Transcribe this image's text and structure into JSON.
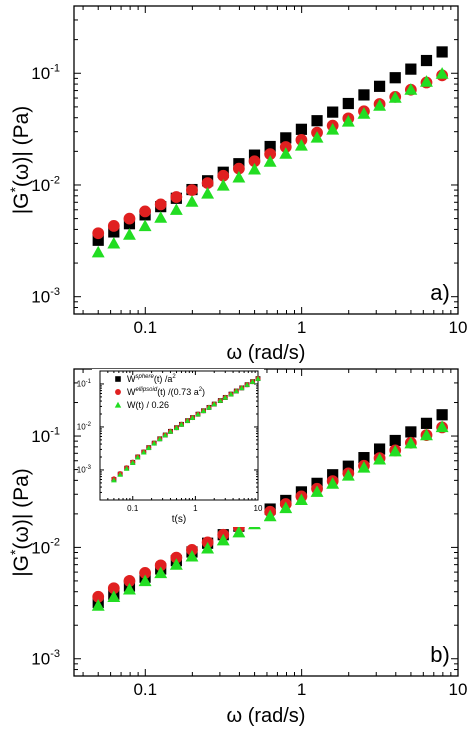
{
  "chart_data": [
    {
      "type": "scatter",
      "panel_label": "a)",
      "xlabel": "ω (rad/s)",
      "ylabel_parts": [
        "|G",
        "*",
        "(ω)| (Pa)"
      ],
      "xscale": "log",
      "yscale": "log",
      "xlim": [
        0.035,
        10
      ],
      "ylim": [
        0.0007,
        0.4
      ],
      "x_ticks": [
        {
          "value": 0.1,
          "label": "0.1"
        },
        {
          "value": 1,
          "label": "1"
        },
        {
          "value": 10,
          "label": "10"
        }
      ],
      "y_ticks": [
        {
          "value": 0.001,
          "mant": "10",
          "exp": "-3"
        },
        {
          "value": 0.01,
          "mant": "10",
          "exp": "-2"
        },
        {
          "value": 0.1,
          "mant": "10",
          "exp": "-1"
        }
      ],
      "x": [
        0.05,
        0.0629,
        0.0792,
        0.0997,
        0.1255,
        0.158,
        0.1989,
        0.2504,
        0.3152,
        0.3968,
        0.4995,
        0.6288,
        0.7916,
        0.9966,
        1.2546,
        1.5794,
        1.9884,
        2.5032,
        3.1513,
        3.9672,
        4.9943,
        6.2874,
        7.9152
      ],
      "series": [
        {
          "marker": "square",
          "color": "#000000",
          "values": [
            0.0032,
            0.0038,
            0.0045,
            0.0054,
            0.0064,
            0.0076,
            0.0091,
            0.0109,
            0.013,
            0.0155,
            0.0185,
            0.0221,
            0.0264,
            0.0315,
            0.0376,
            0.0449,
            0.0536,
            0.064,
            0.0764,
            0.0912,
            0.1089,
            0.13,
            0.1552
          ]
        },
        {
          "marker": "circle",
          "color": "#e02020",
          "values": [
            0.0037,
            0.0043,
            0.005,
            0.0058,
            0.0067,
            0.0078,
            0.009,
            0.0104,
            0.0121,
            0.014,
            0.0163,
            0.0189,
            0.0219,
            0.0253,
            0.0294,
            0.034,
            0.0395,
            0.0457,
            0.053,
            0.0615,
            0.0712,
            0.0826,
            0.0957
          ]
        },
        {
          "marker": "triangle",
          "color": "#22dd22",
          "values": [
            0.0025,
            0.003,
            0.0036,
            0.0043,
            0.0051,
            0.006,
            0.0071,
            0.0084,
            0.0099,
            0.0117,
            0.0138,
            0.0162,
            0.0191,
            0.0226,
            0.0266,
            0.0314,
            0.037,
            0.0436,
            0.0514,
            0.0606,
            0.0714,
            0.0842,
            0.0993
          ]
        }
      ]
    },
    {
      "type": "scatter",
      "panel_label": "b)",
      "xlabel": "ω (rad/s)",
      "ylabel_parts": [
        "|G",
        "*",
        "(ω)| (Pa)"
      ],
      "xscale": "log",
      "yscale": "log",
      "xlim": [
        0.035,
        10
      ],
      "ylim": [
        0.0007,
        0.4
      ],
      "x_ticks": [
        {
          "value": 0.1,
          "label": "0.1"
        },
        {
          "value": 1,
          "label": "1"
        },
        {
          "value": 10,
          "label": "10"
        }
      ],
      "y_ticks": [
        {
          "value": 0.001,
          "mant": "10",
          "exp": "-3"
        },
        {
          "value": 0.01,
          "mant": "10",
          "exp": "-2"
        },
        {
          "value": 0.1,
          "mant": "10",
          "exp": "-1"
        }
      ],
      "x": [
        0.05,
        0.0629,
        0.0792,
        0.0997,
        0.1255,
        0.158,
        0.1989,
        0.2504,
        0.3152,
        0.3968,
        0.4995,
        0.6288,
        0.7916,
        0.9966,
        1.2546,
        1.5794,
        1.9884,
        2.5032,
        3.1513,
        3.9672,
        4.9943,
        6.2874,
        7.9152
      ],
      "series": [
        {
          "marker": "square",
          "color": "#000000",
          "values": [
            0.0032,
            0.0038,
            0.0045,
            0.0054,
            0.0064,
            0.0076,
            0.0091,
            0.0109,
            0.013,
            0.0155,
            0.0185,
            0.0221,
            0.0264,
            0.0315,
            0.0376,
            0.0449,
            0.0536,
            0.064,
            0.0764,
            0.0912,
            0.1089,
            0.13,
            0.1552
          ]
        },
        {
          "marker": "circle",
          "color": "#e02020",
          "values": [
            0.0036,
            0.0043,
            0.005,
            0.0059,
            0.0069,
            0.0081,
            0.0095,
            0.0111,
            0.013,
            0.0152,
            0.0178,
            0.0209,
            0.0245,
            0.0287,
            0.0336,
            0.0394,
            0.0462,
            0.0541,
            0.0634,
            0.0743,
            0.0871,
            0.102,
            0.1195
          ]
        },
        {
          "marker": "triangle",
          "color": "#22dd22",
          "values": [
            0.003,
            0.0036,
            0.0042,
            0.005,
            0.0059,
            0.007,
            0.0083,
            0.0098,
            0.0116,
            0.0137,
            0.0162,
            0.0191,
            0.0226,
            0.0267,
            0.0316,
            0.0374,
            0.0442,
            0.0522,
            0.0618,
            0.073,
            0.0863,
            0.1021,
            0.1207
          ]
        }
      ]
    },
    {
      "type": "scatter",
      "role": "inset",
      "xlabel": "t(s)",
      "xscale": "log",
      "yscale": "log",
      "xlim": [
        0.03,
        10
      ],
      "ylim": [
        0.0002,
        0.2
      ],
      "x_ticks": [
        {
          "value": 0.1,
          "label": "0.1"
        },
        {
          "value": 1,
          "label": "1"
        },
        {
          "value": 10,
          "label": "10"
        }
      ],
      "y_ticks": [
        {
          "value": 0.001,
          "mant": "10",
          "exp": "-3"
        },
        {
          "value": 0.01,
          "mant": "10",
          "exp": "-2"
        },
        {
          "value": 0.1,
          "mant": "10",
          "exp": "-1"
        }
      ],
      "x": [
        0.05,
        0.063,
        0.08,
        0.1,
        0.12,
        0.15,
        0.18,
        0.22,
        0.27,
        0.33,
        0.4,
        0.5,
        0.6,
        0.75,
        0.9,
        1.1,
        1.35,
        1.65,
        2.0,
        2.5,
        3.0,
        3.7,
        4.5,
        5.5,
        6.7,
        8.2,
        10
      ],
      "legend": [
        {
          "marker": "square",
          "color": "#000000",
          "label_main": "W",
          "label_sup": "sphere",
          "label_rest": "(t) /a",
          "label_sup2": "2"
        },
        {
          "marker": "circle",
          "color": "#e02020",
          "label_main": "W",
          "label_sup": "ellipsoid",
          "label_rest": "(t) /(0.73 a",
          "label_sup2": "2",
          "label_end": ")"
        },
        {
          "marker": "triangle",
          "color": "#22dd22",
          "label_main": "W(t) / 0.26",
          "label_sup": "",
          "label_rest": "",
          "label_sup2": ""
        }
      ],
      "series": [
        {
          "marker": "square",
          "color": "#000000",
          "values": [
            0.0006,
            0.0008,
            0.0011,
            0.0015,
            0.002,
            0.0026,
            0.0033,
            0.0042,
            0.0053,
            0.0065,
            0.0079,
            0.0096,
            0.0115,
            0.014,
            0.0165,
            0.0198,
            0.0238,
            0.0285,
            0.034,
            0.041,
            0.0485,
            0.058,
            0.0685,
            0.081,
            0.096,
            0.113,
            0.133
          ]
        },
        {
          "marker": "circle",
          "color": "#e02020",
          "values": [
            0.00062,
            0.00082,
            0.00112,
            0.00152,
            0.00202,
            0.00262,
            0.00332,
            0.00422,
            0.00532,
            0.00652,
            0.00792,
            0.00962,
            0.01152,
            0.01402,
            0.01652,
            0.01982,
            0.02382,
            0.02852,
            0.03402,
            0.04102,
            0.04852,
            0.05802,
            0.06852,
            0.08102,
            0.09602,
            0.11302,
            0.13302
          ]
        },
        {
          "marker": "triangle",
          "color": "#22dd22",
          "values": [
            0.00058,
            0.00078,
            0.00108,
            0.00148,
            0.00198,
            0.00258,
            0.00328,
            0.00418,
            0.00528,
            0.00648,
            0.00788,
            0.00958,
            0.01148,
            0.01398,
            0.01648,
            0.01978,
            0.02378,
            0.02848,
            0.03398,
            0.04098,
            0.04848,
            0.05798,
            0.06848,
            0.08098,
            0.09598,
            0.11298,
            0.13298
          ]
        }
      ]
    }
  ]
}
